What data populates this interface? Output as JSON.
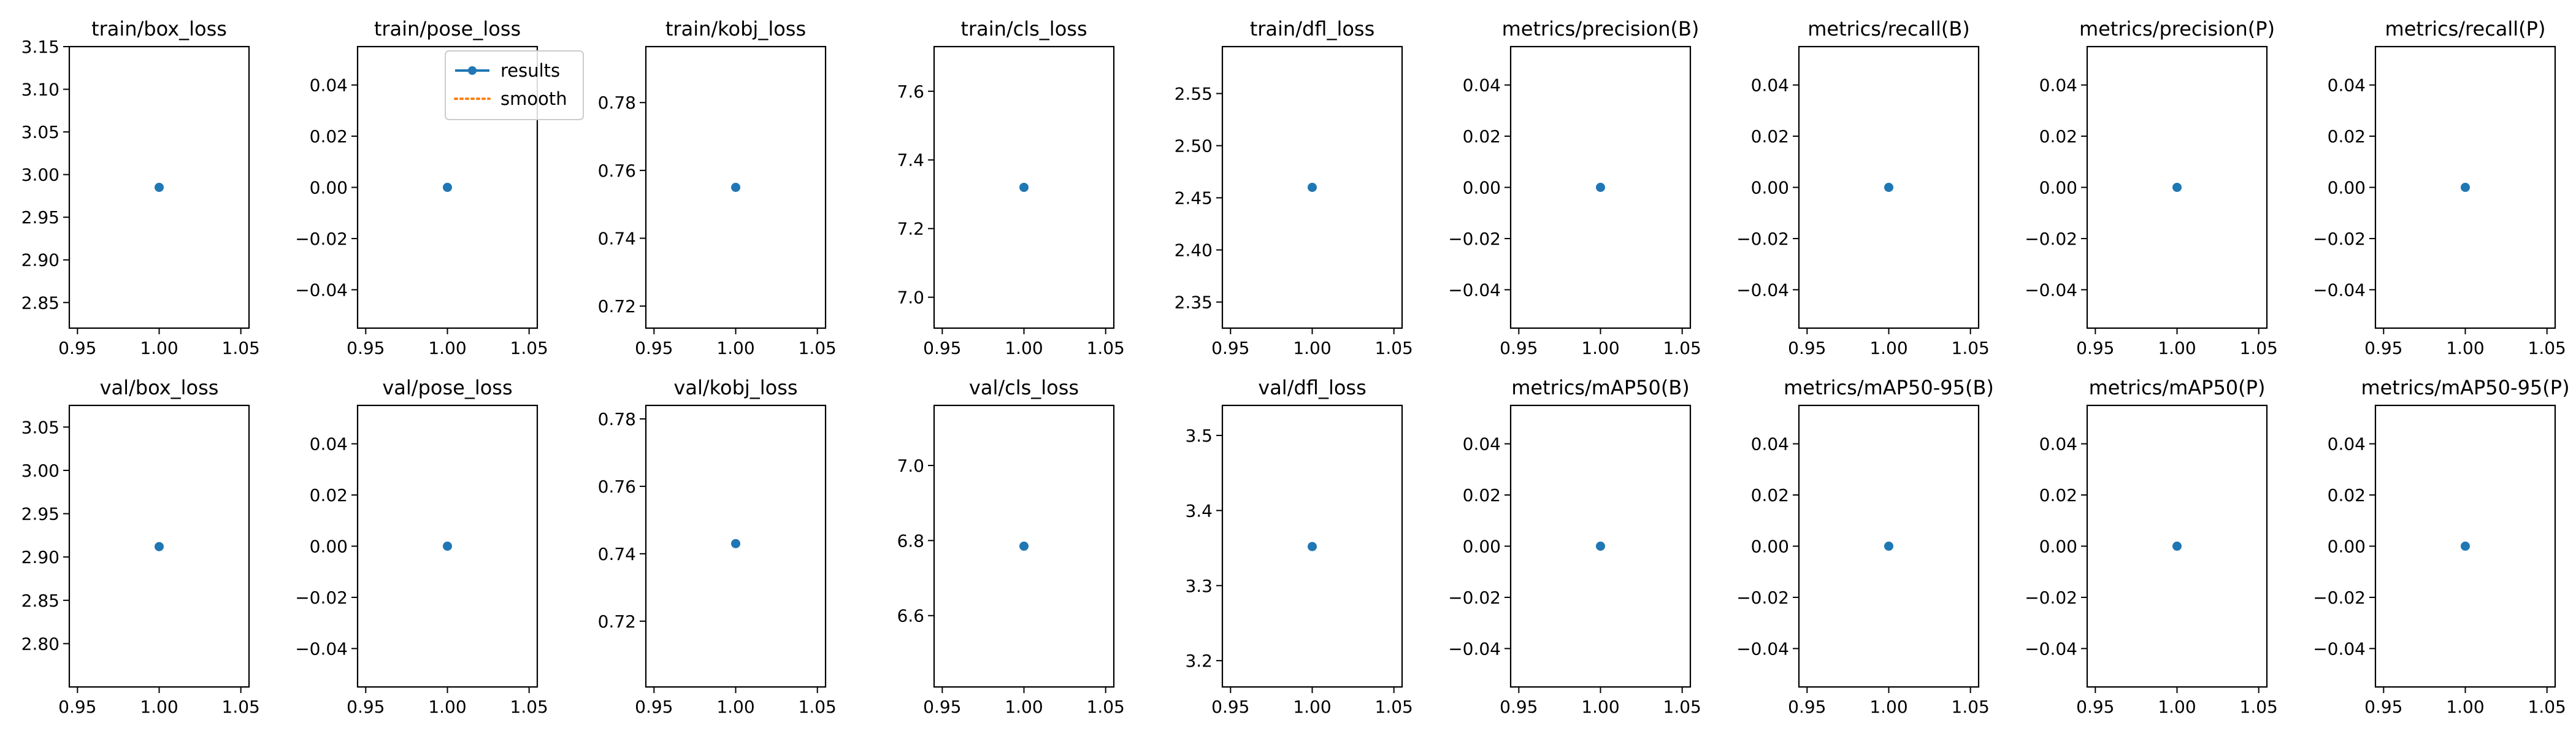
{
  "colors": {
    "results": "#1f77b4",
    "smooth": "#ff7f0e"
  },
  "legend": {
    "placement": "top-right",
    "panel_index": 1,
    "entries": [
      "results",
      "smooth"
    ]
  },
  "chart_data": [
    {
      "type": "scatter",
      "title": "train/box_loss",
      "x": [
        1.0
      ],
      "y": [
        2.985
      ],
      "xlim": [
        0.945,
        1.055
      ],
      "ylim": [
        2.82,
        3.15
      ],
      "xticks": [
        "0.95",
        "1.00",
        "1.05"
      ],
      "yticks": [
        "2.85",
        "2.90",
        "2.95",
        "3.00",
        "3.05",
        "3.10",
        "3.15"
      ]
    },
    {
      "type": "scatter",
      "title": "train/pose_loss",
      "x": [
        1.0
      ],
      "y": [
        0.0
      ],
      "xlim": [
        0.945,
        1.055
      ],
      "ylim": [
        -0.055,
        0.055
      ],
      "xticks": [
        "0.95",
        "1.00",
        "1.05"
      ],
      "yticks": [
        "−0.04",
        "−0.02",
        "0.00",
        "0.02",
        "0.04"
      ]
    },
    {
      "type": "scatter",
      "title": "train/kobj_loss",
      "x": [
        1.0
      ],
      "y": [
        0.755
      ],
      "xlim": [
        0.945,
        1.055
      ],
      "ylim": [
        0.7135,
        0.7965
      ],
      "xticks": [
        "0.95",
        "1.00",
        "1.05"
      ],
      "yticks": [
        "0.72",
        "0.74",
        "0.76",
        "0.78"
      ]
    },
    {
      "type": "scatter",
      "title": "train/cls_loss",
      "x": [
        1.0
      ],
      "y": [
        7.32
      ],
      "xlim": [
        0.945,
        1.055
      ],
      "ylim": [
        6.91,
        7.73
      ],
      "xticks": [
        "0.95",
        "1.00",
        "1.05"
      ],
      "yticks": [
        "7.0",
        "7.2",
        "7.4",
        "7.6"
      ]
    },
    {
      "type": "scatter",
      "title": "train/dfl_loss",
      "x": [
        1.0
      ],
      "y": [
        2.46
      ],
      "xlim": [
        0.945,
        1.055
      ],
      "ylim": [
        2.325,
        2.595
      ],
      "xticks": [
        "0.95",
        "1.00",
        "1.05"
      ],
      "yticks": [
        "2.35",
        "2.40",
        "2.45",
        "2.50",
        "2.55"
      ]
    },
    {
      "type": "scatter",
      "title": "metrics/precision(B)",
      "x": [
        1.0
      ],
      "y": [
        0.0
      ],
      "xlim": [
        0.945,
        1.055
      ],
      "ylim": [
        -0.055,
        0.055
      ],
      "xticks": [
        "0.95",
        "1.00",
        "1.05"
      ],
      "yticks": [
        "−0.04",
        "−0.02",
        "0.00",
        "0.02",
        "0.04"
      ]
    },
    {
      "type": "scatter",
      "title": "metrics/recall(B)",
      "x": [
        1.0
      ],
      "y": [
        0.0
      ],
      "xlim": [
        0.945,
        1.055
      ],
      "ylim": [
        -0.055,
        0.055
      ],
      "xticks": [
        "0.95",
        "1.00",
        "1.05"
      ],
      "yticks": [
        "−0.04",
        "−0.02",
        "0.00",
        "0.02",
        "0.04"
      ]
    },
    {
      "type": "scatter",
      "title": "metrics/precision(P)",
      "x": [
        1.0
      ],
      "y": [
        0.0
      ],
      "xlim": [
        0.945,
        1.055
      ],
      "ylim": [
        -0.055,
        0.055
      ],
      "xticks": [
        "0.95",
        "1.00",
        "1.05"
      ],
      "yticks": [
        "−0.04",
        "−0.02",
        "0.00",
        "0.02",
        "0.04"
      ]
    },
    {
      "type": "scatter",
      "title": "metrics/recall(P)",
      "x": [
        1.0
      ],
      "y": [
        0.0
      ],
      "xlim": [
        0.945,
        1.055
      ],
      "ylim": [
        -0.055,
        0.055
      ],
      "xticks": [
        "0.95",
        "1.00",
        "1.05"
      ],
      "yticks": [
        "−0.04",
        "−0.02",
        "0.00",
        "0.02",
        "0.04"
      ]
    },
    {
      "type": "scatter",
      "title": "val/box_loss",
      "x": [
        1.0
      ],
      "y": [
        2.912
      ],
      "xlim": [
        0.945,
        1.055
      ],
      "ylim": [
        2.75,
        3.075
      ],
      "xticks": [
        "0.95",
        "1.00",
        "1.05"
      ],
      "yticks": [
        "2.80",
        "2.85",
        "2.90",
        "2.95",
        "3.00",
        "3.05"
      ]
    },
    {
      "type": "scatter",
      "title": "val/pose_loss",
      "x": [
        1.0
      ],
      "y": [
        0.0
      ],
      "xlim": [
        0.945,
        1.055
      ],
      "ylim": [
        -0.055,
        0.055
      ],
      "xticks": [
        "0.95",
        "1.00",
        "1.05"
      ],
      "yticks": [
        "−0.04",
        "−0.02",
        "0.00",
        "0.02",
        "0.04"
      ]
    },
    {
      "type": "scatter",
      "title": "val/kobj_loss",
      "x": [
        1.0
      ],
      "y": [
        0.743
      ],
      "xlim": [
        0.945,
        1.055
      ],
      "ylim": [
        0.7005,
        0.784
      ],
      "xticks": [
        "0.95",
        "1.00",
        "1.05"
      ],
      "yticks": [
        "0.72",
        "0.74",
        "0.76",
        "0.78"
      ]
    },
    {
      "type": "scatter",
      "title": "val/cls_loss",
      "x": [
        1.0
      ],
      "y": [
        6.785
      ],
      "xlim": [
        0.945,
        1.055
      ],
      "ylim": [
        6.41,
        7.16
      ],
      "xticks": [
        "0.95",
        "1.00",
        "1.05"
      ],
      "yticks": [
        "6.6",
        "6.8",
        "7.0"
      ]
    },
    {
      "type": "scatter",
      "title": "val/dfl_loss",
      "x": [
        1.0
      ],
      "y": [
        3.352
      ],
      "xlim": [
        0.945,
        1.055
      ],
      "ylim": [
        3.165,
        3.54
      ],
      "xticks": [
        "0.95",
        "1.00",
        "1.05"
      ],
      "yticks": [
        "3.2",
        "3.3",
        "3.4",
        "3.5"
      ]
    },
    {
      "type": "scatter",
      "title": "metrics/mAP50(B)",
      "x": [
        1.0
      ],
      "y": [
        0.0
      ],
      "xlim": [
        0.945,
        1.055
      ],
      "ylim": [
        -0.055,
        0.055
      ],
      "xticks": [
        "0.95",
        "1.00",
        "1.05"
      ],
      "yticks": [
        "−0.04",
        "−0.02",
        "0.00",
        "0.02",
        "0.04"
      ]
    },
    {
      "type": "scatter",
      "title": "metrics/mAP50-95(B)",
      "x": [
        1.0
      ],
      "y": [
        0.0
      ],
      "xlim": [
        0.945,
        1.055
      ],
      "ylim": [
        -0.055,
        0.055
      ],
      "xticks": [
        "0.95",
        "1.00",
        "1.05"
      ],
      "yticks": [
        "−0.04",
        "−0.02",
        "0.00",
        "0.02",
        "0.04"
      ]
    },
    {
      "type": "scatter",
      "title": "metrics/mAP50(P)",
      "x": [
        1.0
      ],
      "y": [
        0.0
      ],
      "xlim": [
        0.945,
        1.055
      ],
      "ylim": [
        -0.055,
        0.055
      ],
      "xticks": [
        "0.95",
        "1.00",
        "1.05"
      ],
      "yticks": [
        "−0.04",
        "−0.02",
        "0.00",
        "0.02",
        "0.04"
      ]
    },
    {
      "type": "scatter",
      "title": "metrics/mAP50-95(P)",
      "x": [
        1.0
      ],
      "y": [
        0.0
      ],
      "xlim": [
        0.945,
        1.055
      ],
      "ylim": [
        -0.055,
        0.055
      ],
      "xticks": [
        "0.95",
        "1.00",
        "1.05"
      ],
      "yticks": [
        "−0.04",
        "−0.02",
        "0.00",
        "0.02",
        "0.04"
      ]
    }
  ]
}
